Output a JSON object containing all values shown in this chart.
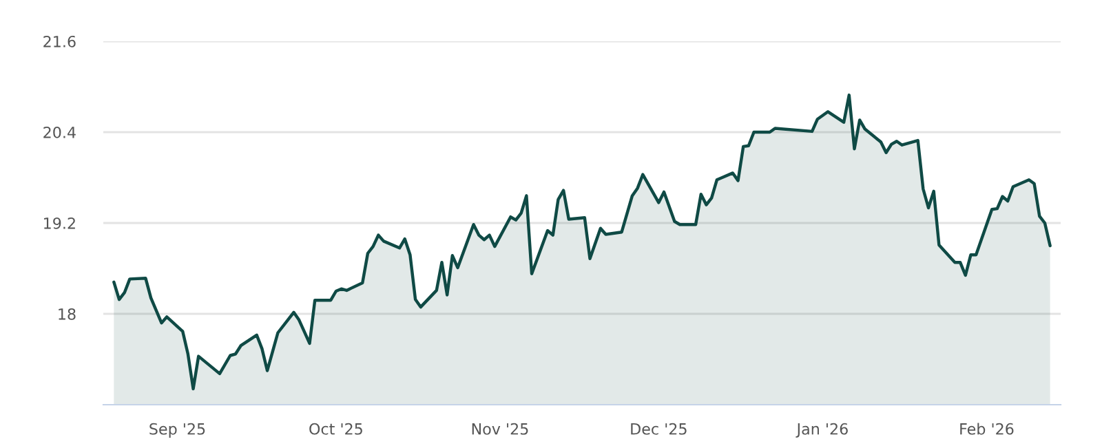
{
  "chart_data": {
    "type": "area",
    "x": [
      "2025-08-20",
      "2025-08-21",
      "2025-08-22",
      "2025-08-23",
      "2025-08-26",
      "2025-08-27",
      "2025-08-29",
      "2025-08-30",
      "2025-09-02",
      "2025-09-03",
      "2025-09-04",
      "2025-09-05",
      "2025-09-09",
      "2025-09-11",
      "2025-09-12",
      "2025-09-13",
      "2025-09-16",
      "2025-09-17",
      "2025-09-18",
      "2025-09-20",
      "2025-09-23",
      "2025-09-24",
      "2025-09-26",
      "2025-09-27",
      "2025-09-30",
      "2025-10-01",
      "2025-10-02",
      "2025-10-03",
      "2025-10-06",
      "2025-10-07",
      "2025-10-08",
      "2025-10-09",
      "2025-10-10",
      "2025-10-13",
      "2025-10-14",
      "2025-10-15",
      "2025-10-16",
      "2025-10-17",
      "2025-10-20",
      "2025-10-21",
      "2025-10-22",
      "2025-10-23",
      "2025-10-24",
      "2025-10-27",
      "2025-10-28",
      "2025-10-29",
      "2025-10-30",
      "2025-10-31",
      "2025-11-03",
      "2025-11-04",
      "2025-11-05",
      "2025-11-06",
      "2025-11-07",
      "2025-11-10",
      "2025-11-11",
      "2025-11-12",
      "2025-11-13",
      "2025-11-14",
      "2025-11-17",
      "2025-11-18",
      "2025-11-20",
      "2025-11-21",
      "2025-11-24",
      "2025-11-26",
      "2025-11-27",
      "2025-11-28",
      "2025-12-01",
      "2025-12-02",
      "2025-12-04",
      "2025-12-05",
      "2025-12-08",
      "2025-12-09",
      "2025-12-10",
      "2025-12-11",
      "2025-12-12",
      "2025-12-15",
      "2025-12-16",
      "2025-12-17",
      "2025-12-18",
      "2025-12-19",
      "2025-12-22",
      "2025-12-23",
      "2025-12-30",
      "2025-12-31",
      "2026-01-02",
      "2026-01-05",
      "2026-01-06",
      "2026-01-07",
      "2026-01-08",
      "2026-01-09",
      "2026-01-12",
      "2026-01-13",
      "2026-01-14",
      "2026-01-15",
      "2026-01-16",
      "2026-01-19",
      "2026-01-20",
      "2026-01-21",
      "2026-01-22",
      "2026-01-23",
      "2026-01-26",
      "2026-01-27",
      "2026-01-28",
      "2026-01-29",
      "2026-01-30",
      "2026-02-02",
      "2026-02-03",
      "2026-02-04",
      "2026-02-05",
      "2026-02-06",
      "2026-02-09",
      "2026-02-10",
      "2026-02-11",
      "2026-02-12",
      "2026-02-13"
    ],
    "series": [
      {
        "color": "#0f4a45",
        "values": [
          18.42,
          18.19,
          18.28,
          18.46,
          18.47,
          18.21,
          17.88,
          17.96,
          17.77,
          17.47,
          17.01,
          17.44,
          17.21,
          17.45,
          17.47,
          17.58,
          17.72,
          17.54,
          17.25,
          17.75,
          18.02,
          17.92,
          17.61,
          18.18,
          18.18,
          18.3,
          18.33,
          18.31,
          18.41,
          18.8,
          18.89,
          19.04,
          18.96,
          18.87,
          18.99,
          18.78,
          18.19,
          18.09,
          18.31,
          18.68,
          18.25,
          18.77,
          18.61,
          19.18,
          19.04,
          18.98,
          19.04,
          18.89,
          19.28,
          19.24,
          19.33,
          19.56,
          18.53,
          19.1,
          19.04,
          19.51,
          19.63,
          19.25,
          19.27,
          18.73,
          19.13,
          19.05,
          19.08,
          19.56,
          19.66,
          19.84,
          19.47,
          19.61,
          19.22,
          19.18,
          19.18,
          19.58,
          19.44,
          19.53,
          19.77,
          19.86,
          19.76,
          20.21,
          20.22,
          20.4,
          20.4,
          20.45,
          20.41,
          20.57,
          20.67,
          20.53,
          20.89,
          20.18,
          20.56,
          20.44,
          20.27,
          20.13,
          20.24,
          20.28,
          20.23,
          20.29,
          19.65,
          19.4,
          19.62,
          18.91,
          18.68,
          18.68,
          18.51,
          18.78,
          18.78,
          19.38,
          19.39,
          19.55,
          19.49,
          19.68,
          19.77,
          19.72,
          19.29,
          19.2,
          18.9
        ]
      }
    ],
    "xlim": [
      "2025-08-18",
      "2026-02-15"
    ],
    "xticks": [
      {
        "value": "2025-09-01",
        "label": "Sep '25"
      },
      {
        "value": "2025-10-01",
        "label": "Oct '25"
      },
      {
        "value": "2025-11-01",
        "label": "Nov '25"
      },
      {
        "value": "2025-12-01",
        "label": "Dec '25"
      },
      {
        "value": "2026-01-01",
        "label": "Jan '26"
      },
      {
        "value": "2026-02-01",
        "label": "Feb '26"
      }
    ],
    "ylim": [
      16.8,
      21.6
    ],
    "yticks": [
      18,
      19.2,
      20.4,
      21.6
    ],
    "grid": "y",
    "legend": false
  }
}
